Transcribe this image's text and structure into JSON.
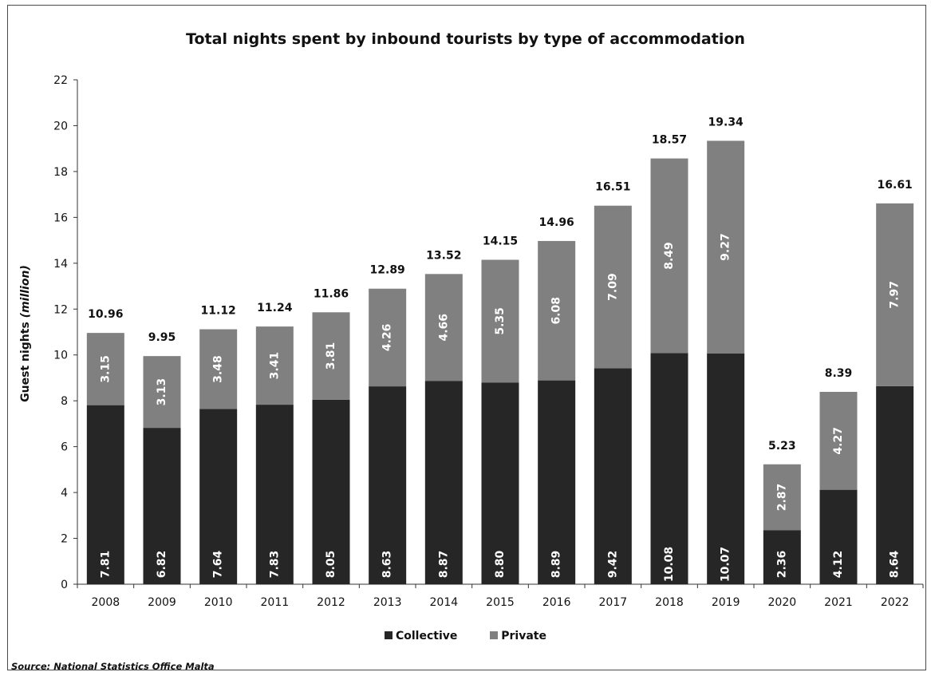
{
  "chart_data": {
    "type": "bar",
    "stacked": true,
    "title": "Total nights spent by inbound tourists by type of accommodation",
    "ylabel": "Guest nights",
    "ylabel_unit": "(million)",
    "xlabel": "",
    "ylim": [
      0,
      22
    ],
    "yticks": [
      0,
      2,
      4,
      6,
      8,
      10,
      12,
      14,
      16,
      18,
      20,
      22
    ],
    "categories": [
      "2008",
      "2009",
      "2010",
      "2011",
      "2012",
      "2013",
      "2014",
      "2015",
      "2016",
      "2017",
      "2018",
      "2019",
      "2020",
      "2021",
      "2022"
    ],
    "series": [
      {
        "name": "Collective",
        "color": "#262626",
        "labels": [
          "7.81",
          "6.82",
          "7.64",
          "7.83",
          "8.05",
          "8.63",
          "8.87",
          "8.80",
          "8.89",
          "9.42",
          "10.08",
          "10.07",
          "2.36",
          "4.12",
          "8.64"
        ],
        "values": [
          7.81,
          6.82,
          7.64,
          7.83,
          8.05,
          8.63,
          8.87,
          8.8,
          8.89,
          9.42,
          10.08,
          10.07,
          2.36,
          4.12,
          8.64
        ]
      },
      {
        "name": "Private",
        "color": "#808080",
        "labels": [
          "3.15",
          "3.13",
          "3.48",
          "3.41",
          "3.81",
          "4.26",
          "4.66",
          "5.35",
          "6.08",
          "7.09",
          "8.49",
          "9.27",
          "2.87",
          "4.27",
          "7.97"
        ],
        "values": [
          3.15,
          3.13,
          3.48,
          3.41,
          3.81,
          4.26,
          4.66,
          5.35,
          6.08,
          7.09,
          8.49,
          9.27,
          2.87,
          4.27,
          7.97
        ]
      }
    ],
    "totals": [
      "10.96",
      "9.95",
      "11.12",
      "11.24",
      "11.86",
      "12.89",
      "13.52",
      "14.15",
      "14.96",
      "16.51",
      "18.57",
      "19.34",
      "5.23",
      "8.39",
      "16.61"
    ],
    "grid": false,
    "legend_position": "bottom"
  },
  "source": "Source: National Statistics Office Malta"
}
